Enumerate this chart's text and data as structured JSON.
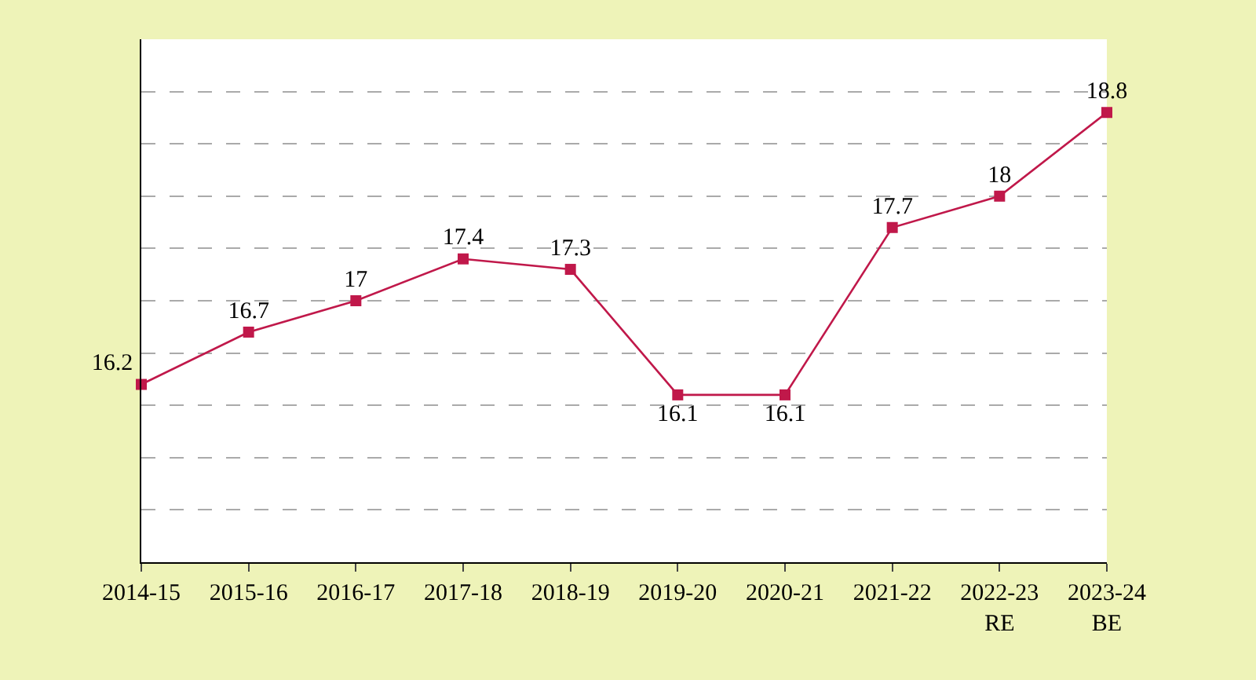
{
  "chart_data": {
    "type": "line",
    "categories": [
      "2014-15",
      "2015-16",
      "2016-17",
      "2017-18",
      "2018-19",
      "2019-20",
      "2020-21",
      "2021-22",
      "2022-23\nRE",
      "2023-24\nBE"
    ],
    "series": [
      {
        "color": "#c0184a",
        "values": [
          16.2,
          16.7,
          17,
          17.4,
          17.3,
          16.1,
          16.1,
          17.7,
          18,
          18.8
        ]
      }
    ],
    "ylim": [
      14.5,
      19.5
    ],
    "yticks": [
      {
        "value": 15,
        "label": null
      },
      {
        "value": 15.5,
        "label": null
      },
      {
        "value": 16,
        "label": null
      },
      {
        "value": 16.5,
        "label": null
      },
      {
        "value": 17,
        "label": null
      },
      {
        "value": 17.5,
        "label": null
      },
      {
        "value": 18,
        "label": null
      },
      {
        "value": 18.5,
        "label": null
      },
      {
        "value": 19,
        "label": null
      }
    ],
    "tick_labels": "x",
    "grid": "y",
    "legend": false,
    "marker": "square",
    "line_style": "solid",
    "data_labels": true
  }
}
